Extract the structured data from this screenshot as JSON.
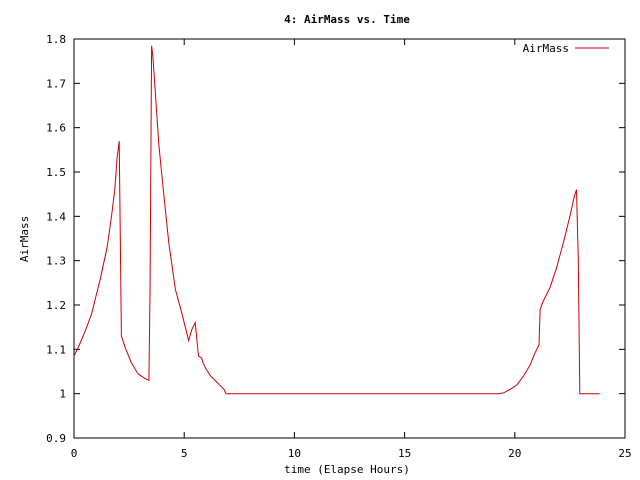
{
  "chart_data": {
    "type": "line",
    "title": "4: AirMass vs. Time",
    "xlabel": "time (Elapse Hours)",
    "ylabel": "AirMass",
    "xlim": [
      0,
      25
    ],
    "ylim": [
      0.9,
      1.8
    ],
    "xticks": [
      0,
      5,
      10,
      15,
      20,
      25
    ],
    "xtick_labels": [
      "0",
      "5",
      "10",
      "15",
      "20",
      "25"
    ],
    "yticks": [
      0.9,
      1,
      1.1,
      1.2,
      1.3,
      1.4,
      1.5,
      1.6,
      1.7,
      1.8
    ],
    "ytick_labels": [
      "0.9",
      "1",
      "1.1",
      "1.2",
      "1.3",
      "1.4",
      "1.5",
      "1.6",
      "1.7",
      "1.8"
    ],
    "grid": false,
    "legend_position": "top-right",
    "series": [
      {
        "name": "AirMass",
        "color": "#cc0000",
        "x": [
          0,
          0.2,
          0.5,
          0.8,
          1.0,
          1.2,
          1.5,
          1.7,
          1.85,
          1.95,
          2.05,
          2.15,
          2.35,
          2.6,
          2.9,
          3.2,
          3.4,
          3.45,
          3.52,
          3.58,
          3.65,
          3.85,
          4.05,
          4.3,
          4.6,
          4.9,
          5.2,
          5.35,
          5.5,
          5.65,
          5.8,
          5.85,
          6.0,
          6.2,
          6.4,
          6.6,
          6.8,
          6.9,
          7.2,
          10,
          15,
          19.3,
          19.5,
          19.8,
          20.1,
          20.4,
          20.7,
          20.9,
          21.1,
          21.15,
          21.3,
          21.6,
          21.9,
          22.2,
          22.5,
          22.7,
          22.8,
          22.88,
          22.95,
          23.2,
          23.6,
          23.85
        ],
        "values": [
          1.085,
          1.105,
          1.14,
          1.18,
          1.22,
          1.26,
          1.33,
          1.4,
          1.46,
          1.53,
          1.57,
          1.13,
          1.1,
          1.07,
          1.045,
          1.035,
          1.03,
          1.225,
          1.785,
          1.76,
          1.71,
          1.56,
          1.46,
          1.34,
          1.235,
          1.18,
          1.12,
          1.145,
          1.16,
          1.085,
          1.08,
          1.07,
          1.055,
          1.04,
          1.03,
          1.02,
          1.01,
          1.0,
          1.0,
          1.0,
          1.0,
          1.0,
          1.002,
          1.01,
          1.02,
          1.04,
          1.065,
          1.09,
          1.11,
          1.19,
          1.21,
          1.24,
          1.285,
          1.34,
          1.4,
          1.445,
          1.46,
          1.3,
          1.0,
          1.0,
          1.0,
          1.0
        ]
      }
    ]
  }
}
